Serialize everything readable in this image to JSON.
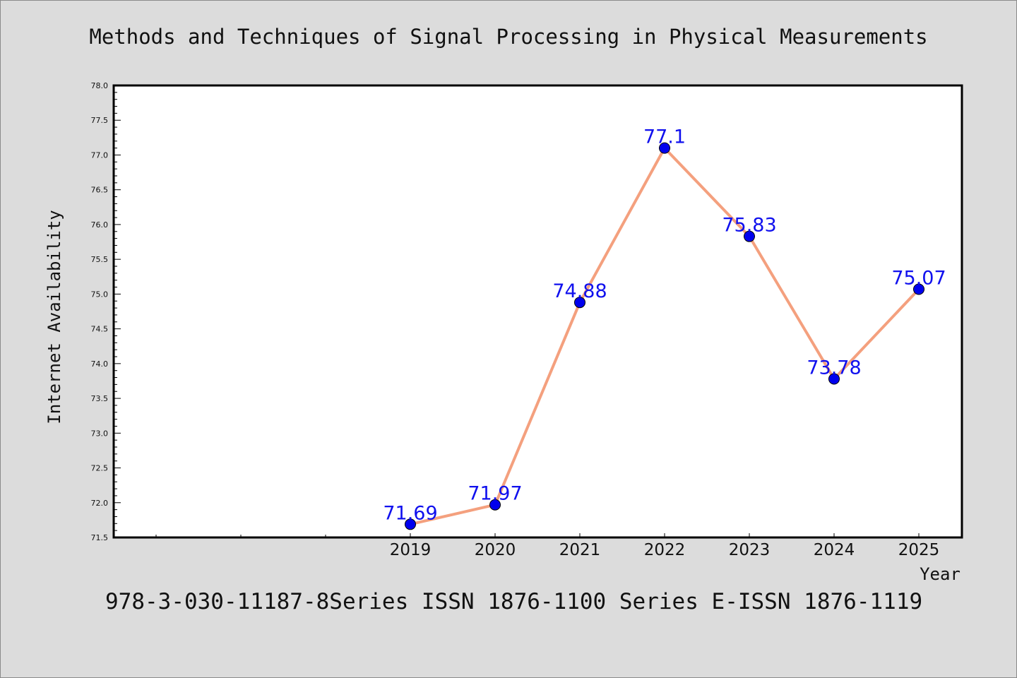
{
  "title": "Methods and Techniques of Signal Processing in Physical Measurements",
  "footer": "978-3-030-11187-8Series ISSN 1876-1100 Series E-ISSN 1876-1119",
  "colors": {
    "background": "#dcdcdc",
    "plot_bg": "#ffffff",
    "line": "#f4a07e",
    "marker": "#0000ee",
    "data_label": "#1010ee"
  },
  "chart_data": {
    "type": "line",
    "title": "Methods and Techniques of Signal Processing in Physical Measurements",
    "xlabel": "Year",
    "ylabel": "Internet Availability",
    "x": [
      "2019",
      "2020",
      "2021",
      "2022",
      "2023",
      "2024",
      "2025"
    ],
    "series": [
      {
        "values": [
          71.69,
          71.97,
          74.88,
          77.1,
          75.83,
          73.78,
          75.07
        ]
      }
    ],
    "data_labels": [
      "71.69",
      "71.97",
      "74.88",
      "77.1",
      "75.83",
      "73.78",
      "75.07"
    ],
    "ylim": [
      71.5,
      78.0
    ],
    "yticks": [
      "71.5",
      "72.0",
      "72.5",
      "73.0",
      "73.5",
      "74.0",
      "74.5",
      "75.0",
      "75.5",
      "76.0",
      "76.5",
      "77.0",
      "77.5",
      "78.0"
    ],
    "grid": false,
    "legend": "none"
  }
}
